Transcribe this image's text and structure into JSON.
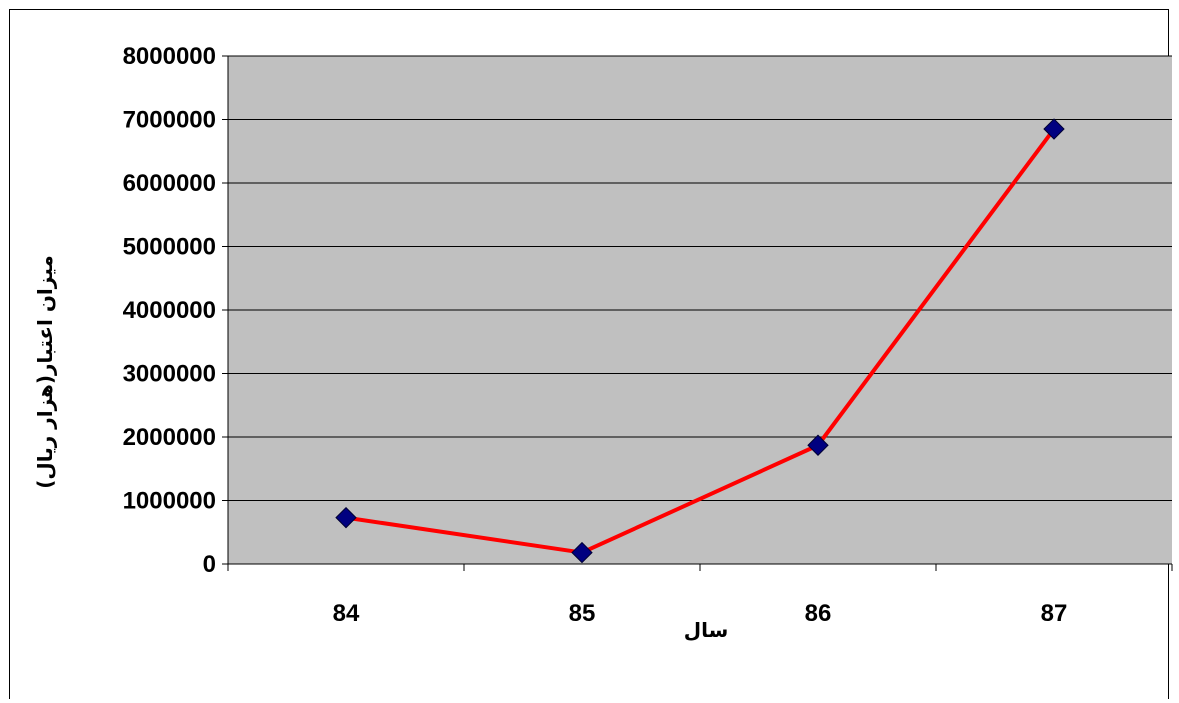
{
  "chart_data": {
    "type": "line",
    "title": "",
    "xlabel": "سال",
    "ylabel": "میزان اعتبار(هزار ریال)",
    "categories": [
      "84",
      "85",
      "86",
      "87"
    ],
    "series": [
      {
        "values": [
          730000,
          180000,
          1870000,
          6850000
        ],
        "color": "#ff0000",
        "marker": "diamond",
        "marker_color": "#000080"
      }
    ],
    "ylim": [
      0,
      8000000
    ],
    "yticks": [
      "0",
      "1000000",
      "2000000",
      "3000000",
      "4000000",
      "5000000",
      "6000000",
      "7000000",
      "8000000"
    ],
    "grid": true,
    "legend": "none",
    "plot_background": "#c0c0c0"
  }
}
